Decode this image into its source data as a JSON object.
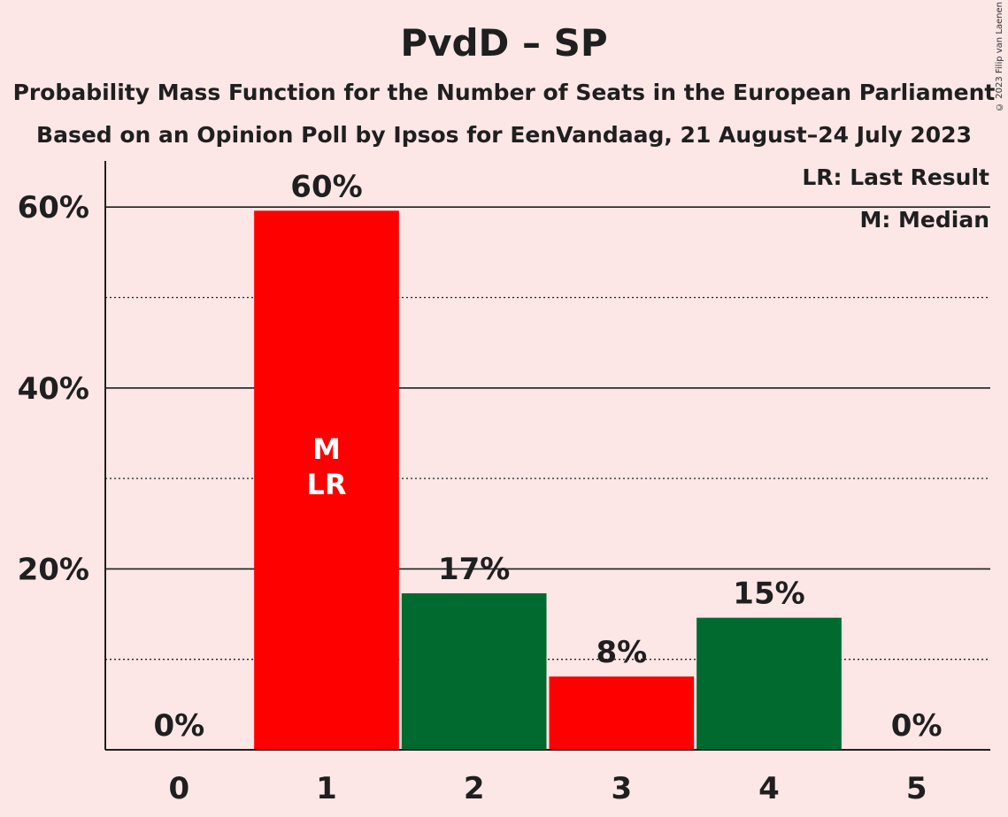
{
  "title": "PvdD – SP",
  "subtitle1": "Probability Mass Function for the Number of Seats in the European Parliament",
  "subtitle2": "Based on an Opinion Poll by Ipsos for EenVandaag, 21 August–24 July 2023",
  "copyright": "© 2023 Filip van Laenen",
  "legend": {
    "lr": "LR: Last Result",
    "m": "M: Median"
  },
  "colors": {
    "red": "#ff0000",
    "green": "#006a2f",
    "background": "#fce6e6"
  },
  "chart_data": {
    "type": "bar",
    "categories": [
      "0",
      "1",
      "2",
      "3",
      "4",
      "5"
    ],
    "values": [
      0,
      59.6,
      17.3,
      8.1,
      14.6,
      0
    ],
    "value_labels": [
      "0%",
      "60%",
      "17%",
      "8%",
      "15%",
      "0%"
    ],
    "bar_colors": [
      "#ff0000",
      "#ff0000",
      "#006a2f",
      "#ff0000",
      "#006a2f",
      "#006a2f"
    ],
    "in_bar_labels": {
      "1": [
        "M",
        "LR"
      ]
    },
    "yticks": [
      20,
      40,
      60
    ],
    "ytick_labels": [
      "20%",
      "40%",
      "60%"
    ],
    "minor_gridlines": [
      10,
      30,
      50
    ],
    "ylim": [
      0,
      65
    ],
    "xlabel": "",
    "ylabel": ""
  }
}
